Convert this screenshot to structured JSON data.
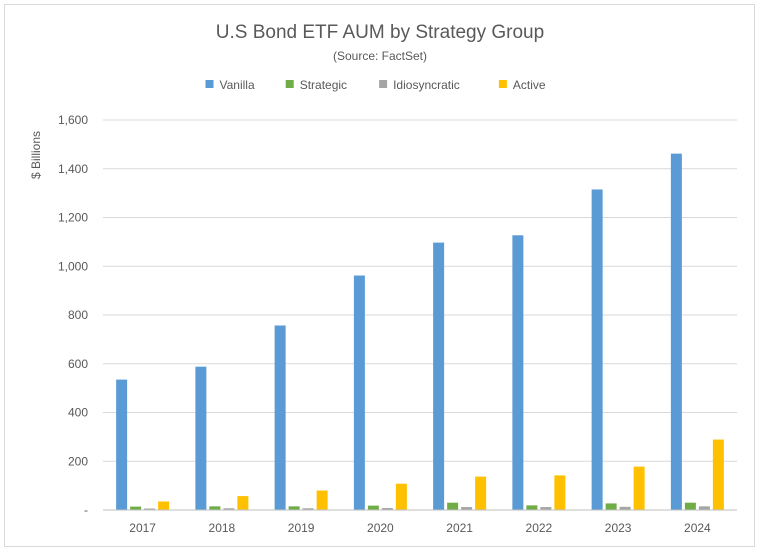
{
  "chart_data": {
    "type": "bar",
    "title": "U.S Bond ETF AUM by Strategy Group",
    "subtitle": "(Source: FactSet)",
    "xlabel": "",
    "ylabel": "$ Billions",
    "categories": [
      "2017",
      "2018",
      "2019",
      "2020",
      "2021",
      "2022",
      "2023",
      "2024"
    ],
    "series": [
      {
        "name": "Vanilla",
        "color": "#5b9bd5",
        "values": [
          535,
          588,
          757,
          962,
          1097,
          1127,
          1315,
          1462
        ]
      },
      {
        "name": "Strategic",
        "color": "#70ad47",
        "values": [
          14,
          15,
          15,
          18,
          30,
          19,
          27,
          30
        ]
      },
      {
        "name": "Idiosyncratic",
        "color": "#a5a5a5",
        "values": [
          6,
          7,
          7,
          8,
          12,
          12,
          13,
          15
        ]
      },
      {
        "name": "Active",
        "color": "#ffc000",
        "values": [
          35,
          57,
          80,
          108,
          137,
          142,
          178,
          289
        ]
      }
    ],
    "ylim": [
      0,
      1600
    ],
    "yticks": [
      0,
      200,
      400,
      600,
      800,
      1000,
      1200,
      1400,
      1600
    ],
    "ytick_labels": [
      "-",
      "200",
      "400",
      "600",
      "800",
      "1,000",
      "1,200",
      "1,400",
      "1,600"
    ],
    "grid": true,
    "legend_position": "top"
  }
}
